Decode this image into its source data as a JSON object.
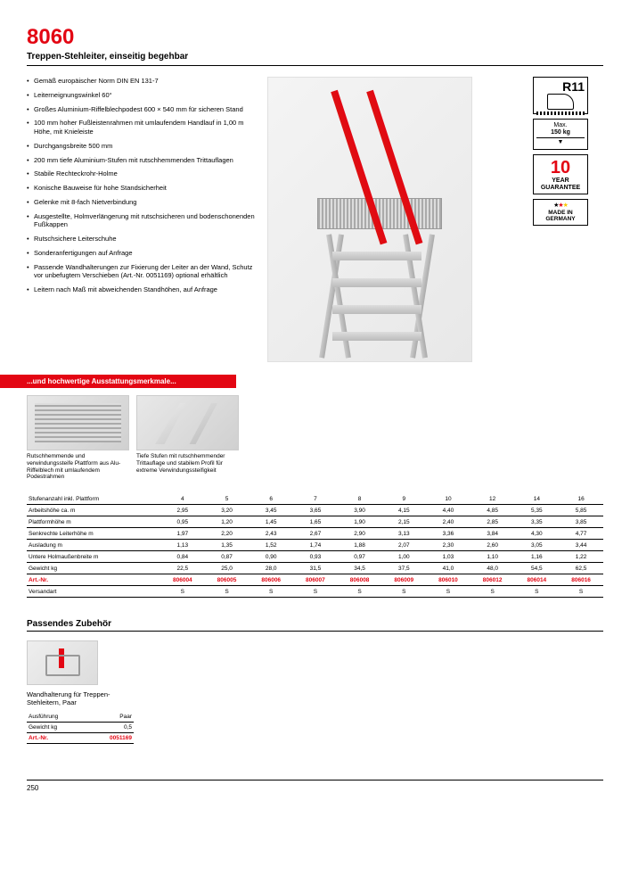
{
  "header": {
    "number": "8060",
    "title": "Treppen-Stehleiter, einseitig begehbar"
  },
  "features": [
    "Gemäß europäischer Norm DIN EN 131-7",
    "Leiterneignungswinkel 60°",
    "Großes Aluminium-Riffelblechpodest 600 × 540 mm für sicheren Stand",
    "100 mm hoher Fußleistenrahmen mit umlaufendem Handlauf in 1,00 m Höhe, mit Knieleiste",
    "Durchgangsbreite 500 mm",
    "200 mm tiefe Aluminium-Stufen mit rutschhemmenden Trittauflagen",
    "Stabile Rechteckrohr-Holme",
    "Konische Bauweise für hohe Standsicherheit",
    "Gelenke mit 8-fach Nietverbindung",
    "Ausgestellte, Holmverlängerung mit rutschsicheren und bodenschonenden Fußkappen",
    "Rutschsichere Leiterschuhe",
    "Sonderanfertigungen auf Anfrage",
    "Passende Wandhalterungen zur Fixierung der Leiter an der Wand, Schutz vor unbefugtem Verschieben (Art.-Nr. 0051169) optional erhältlich",
    "Leitern nach Maß mit abweichenden Standhöhen, auf Anfrage"
  ],
  "redband": "...und hochwertige Ausstattungsmerkmale...",
  "gallery": [
    {
      "caption": "Rutschhemmende und verwindungssteife Plattform aus Alu-Riffelblech mit umlaufendem Podestrahmen"
    },
    {
      "caption": "Tiefe Stufen mit rutschhemmender Trittauflage und stabilem Profil für extreme Verwindungssteifigkeit"
    }
  ],
  "badges": {
    "r11": "R11",
    "maxload_label": "Max.",
    "maxload_value": "150 kg",
    "guarantee_years": "10",
    "guarantee_label1": "YEAR",
    "guarantee_label2": "GUARANTEE",
    "made": "MADE IN GERMANY"
  },
  "spec": {
    "rows": [
      {
        "label": "Stufenanzahl inkl. Plattform",
        "vals": [
          "4",
          "5",
          "6",
          "7",
          "8",
          "9",
          "10",
          "12",
          "14",
          "16"
        ]
      },
      {
        "label": "Arbeitshöhe ca. m",
        "vals": [
          "2,95",
          "3,20",
          "3,45",
          "3,65",
          "3,90",
          "4,15",
          "4,40",
          "4,85",
          "5,35",
          "5,85"
        ]
      },
      {
        "label": "Plattformhöhe m",
        "vals": [
          "0,95",
          "1,20",
          "1,45",
          "1,65",
          "1,90",
          "2,15",
          "2,40",
          "2,85",
          "3,35",
          "3,85"
        ]
      },
      {
        "label": "Senkrechte Leiterhöhe m",
        "vals": [
          "1,97",
          "2,20",
          "2,43",
          "2,67",
          "2,90",
          "3,13",
          "3,36",
          "3,84",
          "4,30",
          "4,77"
        ]
      },
      {
        "label": "Ausladung m",
        "vals": [
          "1,13",
          "1,35",
          "1,52",
          "1,74",
          "1,88",
          "2,07",
          "2,30",
          "2,60",
          "3,05",
          "3,44"
        ]
      },
      {
        "label": "Untere Holmaußenbreite m",
        "vals": [
          "0,84",
          "0,87",
          "0,90",
          "0,93",
          "0,97",
          "1,00",
          "1,03",
          "1,10",
          "1,16",
          "1,22"
        ]
      },
      {
        "label": "Gewicht kg",
        "vals": [
          "22,5",
          "25,0",
          "28,0",
          "31,5",
          "34,5",
          "37,5",
          "41,0",
          "48,0",
          "54,5",
          "62,5"
        ]
      },
      {
        "label": "Art.-Nr.",
        "vals": [
          "806004",
          "806005",
          "806006",
          "806007",
          "806008",
          "806009",
          "806010",
          "806012",
          "806014",
          "806016"
        ],
        "red": true
      },
      {
        "label": "Versandart",
        "vals": [
          "S",
          "S",
          "S",
          "S",
          "S",
          "S",
          "S",
          "S",
          "S",
          "S"
        ]
      }
    ]
  },
  "accessories": {
    "heading": "Passendes Zubehör",
    "item": {
      "title": "Wandhalterung für Treppen-Stehleitern, Paar",
      "rows": [
        {
          "k": "Ausführung",
          "v": "Paar"
        },
        {
          "k": "Gewicht kg",
          "v": "0,5"
        },
        {
          "k": "Art.-Nr.",
          "v": "0051169",
          "red": true
        }
      ]
    }
  },
  "page": "250"
}
